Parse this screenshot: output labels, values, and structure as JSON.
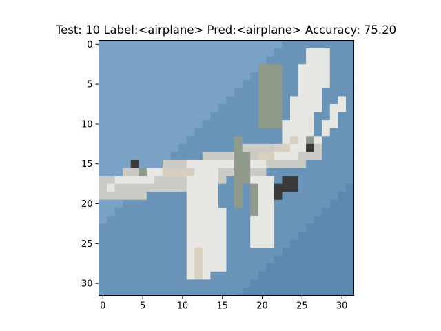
{
  "figure": {
    "title": "Test: 10  Label:<airplane>  Pred:<airplane>  Accuracy: 75.20",
    "image_grid": {
      "rows": 32,
      "cols": 32
    },
    "x_ticks": [
      {
        "value": 0,
        "label": "0"
      },
      {
        "value": 5,
        "label": "5"
      },
      {
        "value": 10,
        "label": "10"
      },
      {
        "value": 15,
        "label": "15"
      },
      {
        "value": 20,
        "label": "20"
      },
      {
        "value": 25,
        "label": "25"
      },
      {
        "value": 30,
        "label": "30"
      }
    ],
    "y_ticks": [
      {
        "value": 0,
        "label": "0"
      },
      {
        "value": 5,
        "label": "5"
      },
      {
        "value": 10,
        "label": "10"
      },
      {
        "value": 15,
        "label": "15"
      },
      {
        "value": 20,
        "label": "20"
      },
      {
        "value": 25,
        "label": "25"
      },
      {
        "value": 30,
        "label": "30"
      }
    ],
    "colors": {
      "sky": "#6a93b8",
      "sky_dark": "#5e88ad",
      "sky_light": "#7aa2c4",
      "plane_light": "#e6e6e2",
      "plane_mid": "#c9cbc4",
      "plane_shadow": "#8f9a8a",
      "plane_dark": "#3a3a3a",
      "plane_tan": "#d8cfc0",
      "axis": "#000000"
    }
  }
}
